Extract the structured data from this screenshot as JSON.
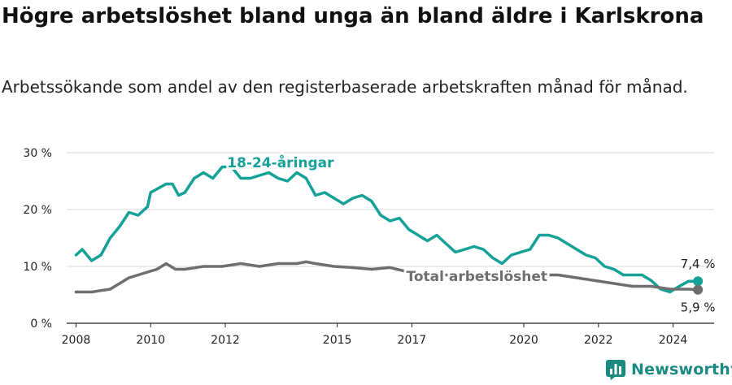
{
  "title": "Högre arbetslöshet bland unga än bland äldre i Karlskrona",
  "subtitle": "Arbetssökande som andel av den registerbaserade arbetskraften månad för månad.",
  "brand": "Newsworthy",
  "colors": {
    "youth": "#14a197",
    "total": "#6e6e6e",
    "grid": "#d9d9d9",
    "brand": "#1b8a80"
  },
  "chart_data": {
    "type": "line",
    "x_ticks": [
      "2008",
      "2010",
      "2012",
      "2015",
      "2017",
      "2020",
      "2022",
      "2024"
    ],
    "y_ticks": [
      "0 %",
      "10 %",
      "20 %",
      "30 %"
    ],
    "ylim": [
      0,
      30
    ],
    "xlim": [
      "2008-01",
      "2024-12"
    ],
    "series": [
      {
        "name": "18-24-åringar",
        "color": "#14a197",
        "end_label": "7,4 %",
        "points": [
          [
            "2008-01",
            12.0
          ],
          [
            "2008-03",
            13.0
          ],
          [
            "2008-06",
            11.0
          ],
          [
            "2008-09",
            12.0
          ],
          [
            "2008-12",
            15.0
          ],
          [
            "2009-03",
            17.0
          ],
          [
            "2009-06",
            19.5
          ],
          [
            "2009-09",
            19.0
          ],
          [
            "2009-12",
            20.5
          ],
          [
            "2010-01",
            23.0
          ],
          [
            "2010-06",
            24.5
          ],
          [
            "2010-08",
            24.5
          ],
          [
            "2010-10",
            22.5
          ],
          [
            "2010-12",
            23.0
          ],
          [
            "2011-03",
            25.5
          ],
          [
            "2011-06",
            26.5
          ],
          [
            "2011-09",
            25.5
          ],
          [
            "2011-12",
            27.5
          ],
          [
            "2012-03",
            27.5
          ],
          [
            "2012-06",
            25.5
          ],
          [
            "2012-09",
            25.5
          ],
          [
            "2013-03",
            26.5
          ],
          [
            "2013-06",
            25.5
          ],
          [
            "2013-09",
            25.0
          ],
          [
            "2013-12",
            26.5
          ],
          [
            "2014-03",
            25.5
          ],
          [
            "2014-06",
            22.5
          ],
          [
            "2014-09",
            23.0
          ],
          [
            "2014-12",
            22.0
          ],
          [
            "2015-03",
            21.0
          ],
          [
            "2015-06",
            22.0
          ],
          [
            "2015-09",
            22.5
          ],
          [
            "2015-12",
            21.5
          ],
          [
            "2016-03",
            19.0
          ],
          [
            "2016-06",
            18.0
          ],
          [
            "2016-09",
            18.5
          ],
          [
            "2016-12",
            16.5
          ],
          [
            "2017-03",
            15.5
          ],
          [
            "2017-06",
            14.5
          ],
          [
            "2017-09",
            15.5
          ],
          [
            "2017-12",
            14.0
          ],
          [
            "2018-03",
            12.5
          ],
          [
            "2018-06",
            13.0
          ],
          [
            "2018-09",
            13.5
          ],
          [
            "2018-12",
            13.0
          ],
          [
            "2019-03",
            11.5
          ],
          [
            "2019-06",
            10.5
          ],
          [
            "2019-09",
            12.0
          ],
          [
            "2019-12",
            12.5
          ],
          [
            "2020-03",
            13.0
          ],
          [
            "2020-06",
            15.5
          ],
          [
            "2020-09",
            15.5
          ],
          [
            "2020-12",
            15.0
          ],
          [
            "2021-03",
            14.0
          ],
          [
            "2021-06",
            13.0
          ],
          [
            "2021-09",
            12.0
          ],
          [
            "2021-12",
            11.5
          ],
          [
            "2022-03",
            10.0
          ],
          [
            "2022-06",
            9.5
          ],
          [
            "2022-09",
            8.5
          ],
          [
            "2022-12",
            8.5
          ],
          [
            "2023-03",
            8.5
          ],
          [
            "2023-06",
            7.5
          ],
          [
            "2023-09",
            6.0
          ],
          [
            "2023-12",
            5.5
          ],
          [
            "2024-03",
            6.5
          ],
          [
            "2024-06",
            7.4
          ],
          [
            "2024-09",
            7.4
          ]
        ]
      },
      {
        "name": "Total arbetslöshet",
        "color": "#6e6e6e",
        "end_label": "5,9 %",
        "points": [
          [
            "2008-01",
            5.5
          ],
          [
            "2008-06",
            5.5
          ],
          [
            "2008-12",
            6.0
          ],
          [
            "2009-03",
            7.0
          ],
          [
            "2009-06",
            8.0
          ],
          [
            "2009-12",
            9.0
          ],
          [
            "2010-03",
            9.5
          ],
          [
            "2010-06",
            10.5
          ],
          [
            "2010-09",
            9.5
          ],
          [
            "2010-12",
            9.5
          ],
          [
            "2011-06",
            10.0
          ],
          [
            "2011-12",
            10.0
          ],
          [
            "2012-06",
            10.5
          ],
          [
            "2012-12",
            10.0
          ],
          [
            "2013-06",
            10.5
          ],
          [
            "2013-12",
            10.5
          ],
          [
            "2014-03",
            10.8
          ],
          [
            "2014-06",
            10.5
          ],
          [
            "2014-12",
            10.0
          ],
          [
            "2015-06",
            9.8
          ],
          [
            "2015-12",
            9.5
          ],
          [
            "2016-06",
            9.8
          ],
          [
            "2016-12",
            9.0
          ],
          [
            "2017-06",
            8.5
          ],
          [
            "2017-12",
            8.5
          ],
          [
            "2018-06",
            8.2
          ],
          [
            "2018-12",
            8.0
          ],
          [
            "2019-06",
            7.8
          ],
          [
            "2019-12",
            8.0
          ],
          [
            "2020-06",
            8.5
          ],
          [
            "2020-12",
            8.5
          ],
          [
            "2021-06",
            8.0
          ],
          [
            "2021-12",
            7.5
          ],
          [
            "2022-06",
            7.0
          ],
          [
            "2022-12",
            6.5
          ],
          [
            "2023-06",
            6.5
          ],
          [
            "2023-12",
            6.0
          ],
          [
            "2024-06",
            6.0
          ],
          [
            "2024-09",
            5.9
          ]
        ]
      }
    ]
  }
}
